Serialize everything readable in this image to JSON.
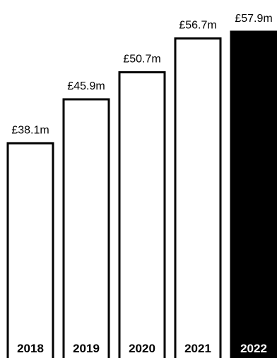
{
  "chart_data": {
    "type": "bar",
    "categories": [
      "2018",
      "2019",
      "2020",
      "2021",
      "2022"
    ],
    "values": [
      38.1,
      45.9,
      50.7,
      56.7,
      57.9
    ],
    "value_labels": [
      "£38.1m",
      "£45.9m",
      "£50.7m",
      "£56.7m",
      "£57.9m"
    ],
    "unit": "£m",
    "highlight_index": 4,
    "colors": {
      "bar_fill": "#ffffff",
      "bar_stroke": "#000000",
      "highlight_fill": "#000000",
      "label_on_light": "#000000",
      "label_on_dark": "#ffffff"
    },
    "title": "",
    "xlabel": "",
    "ylabel": "",
    "ylim": [
      0,
      60
    ],
    "grid": false,
    "legend": "none"
  }
}
